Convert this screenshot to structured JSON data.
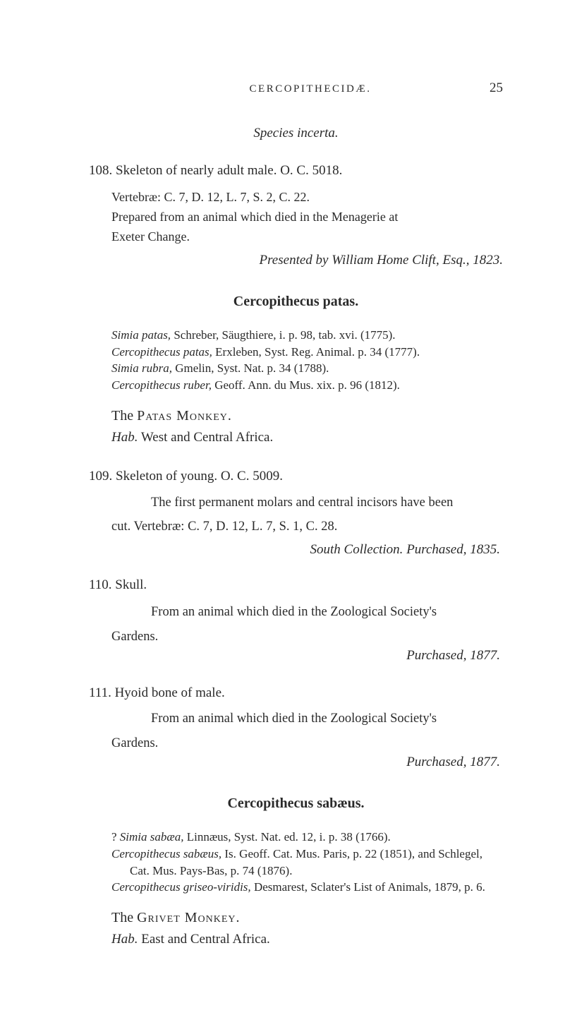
{
  "header": {
    "running_head": "CERCOPITHECIDÆ.",
    "page_number": "25"
  },
  "species_incerta": "Species incerta.",
  "entry108": {
    "main": "108. Skeleton of nearly adult male.   O. C. 5018.",
    "line1": "Vertebræ: C. 7, D. 12, L. 7, S. 2, C. 22.",
    "line2": "Prepared from an animal which died in the Menagerie at",
    "line3": "Exeter Change.",
    "presented": "Presented by William Home Clift, Esq., 1823."
  },
  "patas": {
    "heading": "Cercopithecus patas.",
    "syn1_it": "Simia patas,",
    "syn1_rest": " Schreber, Säugthiere, i. p. 98, tab. xvi. (1775).",
    "syn2_it": "Cercopithecus patas,",
    "syn2_rest": " Erxleben, Syst. Reg. Animal. p. 34 (1777).",
    "syn3_it": "Simia rubra,",
    "syn3_rest": " Gmelin, Syst. Nat. p. 34 (1788).",
    "syn4_it": "Cercopithecus ruber,",
    "syn4_rest": " Geoff. Ann. du Mus. xix. p. 96 (1812).",
    "common_pre": "The ",
    "common_sc": "Patas Monkey.",
    "hab_it": "Hab.",
    "hab_rest": " West and Central Africa."
  },
  "entry109": {
    "main": "109. Skeleton of young.   O. C. 5009.",
    "para1": "The first permanent molars and central incisors have been",
    "para2": "cut.   Vertebræ: C. 7, D. 12, L. 7, S. 1, C. 28.",
    "south_a": "South Collection.   ",
    "south_b": "Purchased, 1835."
  },
  "entry110": {
    "main": "110. Skull.",
    "para1": "From an animal which died in the Zoological Society's",
    "para2": "Gardens.",
    "purchased": "Purchased, 1877."
  },
  "entry111": {
    "main": "111. Hyoid bone of male.",
    "para1": "From an animal which died in the Zoological Society's",
    "para2": "Gardens.",
    "purchased": "Purchased, 1877."
  },
  "sabaeus": {
    "heading": "Cercopithecus sabæus.",
    "syn1_pre": "? ",
    "syn1_it": "Simia sabæa,",
    "syn1_rest": " Linnæus, Syst. Nat. ed. 12, i. p. 38 (1766).",
    "syn2_it": "Cercopithecus sabæus,",
    "syn2_rest": " Is. Geoff. Cat. Mus. Paris, p. 22 (1851), and Schlegel, Cat. Mus. Pays-Bas, p. 74 (1876).",
    "syn3_it": "Cercopithecus griseo-viridis,",
    "syn3_rest": " Desmarest, Sclater's List of Animals, 1879, p. 6.",
    "common_pre": "The ",
    "common_sc": "Grivet Monkey.",
    "hab_it": "Hab.",
    "hab_rest": " East and Central Africa."
  }
}
